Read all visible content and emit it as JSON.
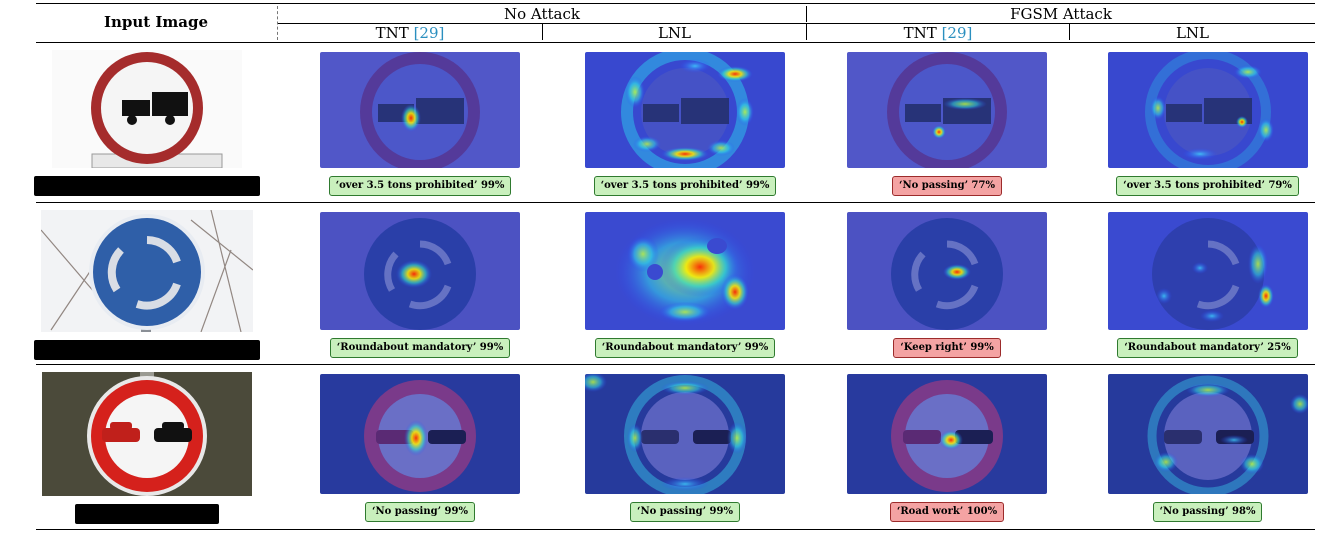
{
  "header": {
    "input_image": "Input Image",
    "no_attack": "No Attack",
    "fgsm_attack": "FGSM Attack",
    "tnt": "TNT",
    "ref": "[29]",
    "lnl": "LNL"
  },
  "rows": [
    {
      "sign": "truck",
      "labels": [
        "‘over 3.5 tons prohibited’ 99%",
        "‘over 3.5 tons prohibited’ 99%",
        "‘No passing’ 77%",
        "‘over 3.5 tons prohibited’ 79%"
      ],
      "correct": [
        true,
        true,
        false,
        true
      ]
    },
    {
      "sign": "roundabout",
      "labels": [
        "‘Roundabout mandatory’ 99%",
        "‘Roundabout mandatory’ 99%",
        "‘Keep right’ 99%",
        "‘Roundabout mandatory’ 25%"
      ],
      "correct": [
        true,
        true,
        false,
        true
      ]
    },
    {
      "sign": "no-passing",
      "labels": [
        "‘No passing’ 99%",
        "‘No passing’ 99%",
        "‘Road work’ 100%",
        "‘No passing’ 98%"
      ],
      "correct": [
        true,
        true,
        false,
        true
      ]
    }
  ],
  "colors": {
    "correct_fill": "#c9f0bd",
    "wrong_fill": "#f4a3a3",
    "ref_color": "#2a8fbf"
  }
}
